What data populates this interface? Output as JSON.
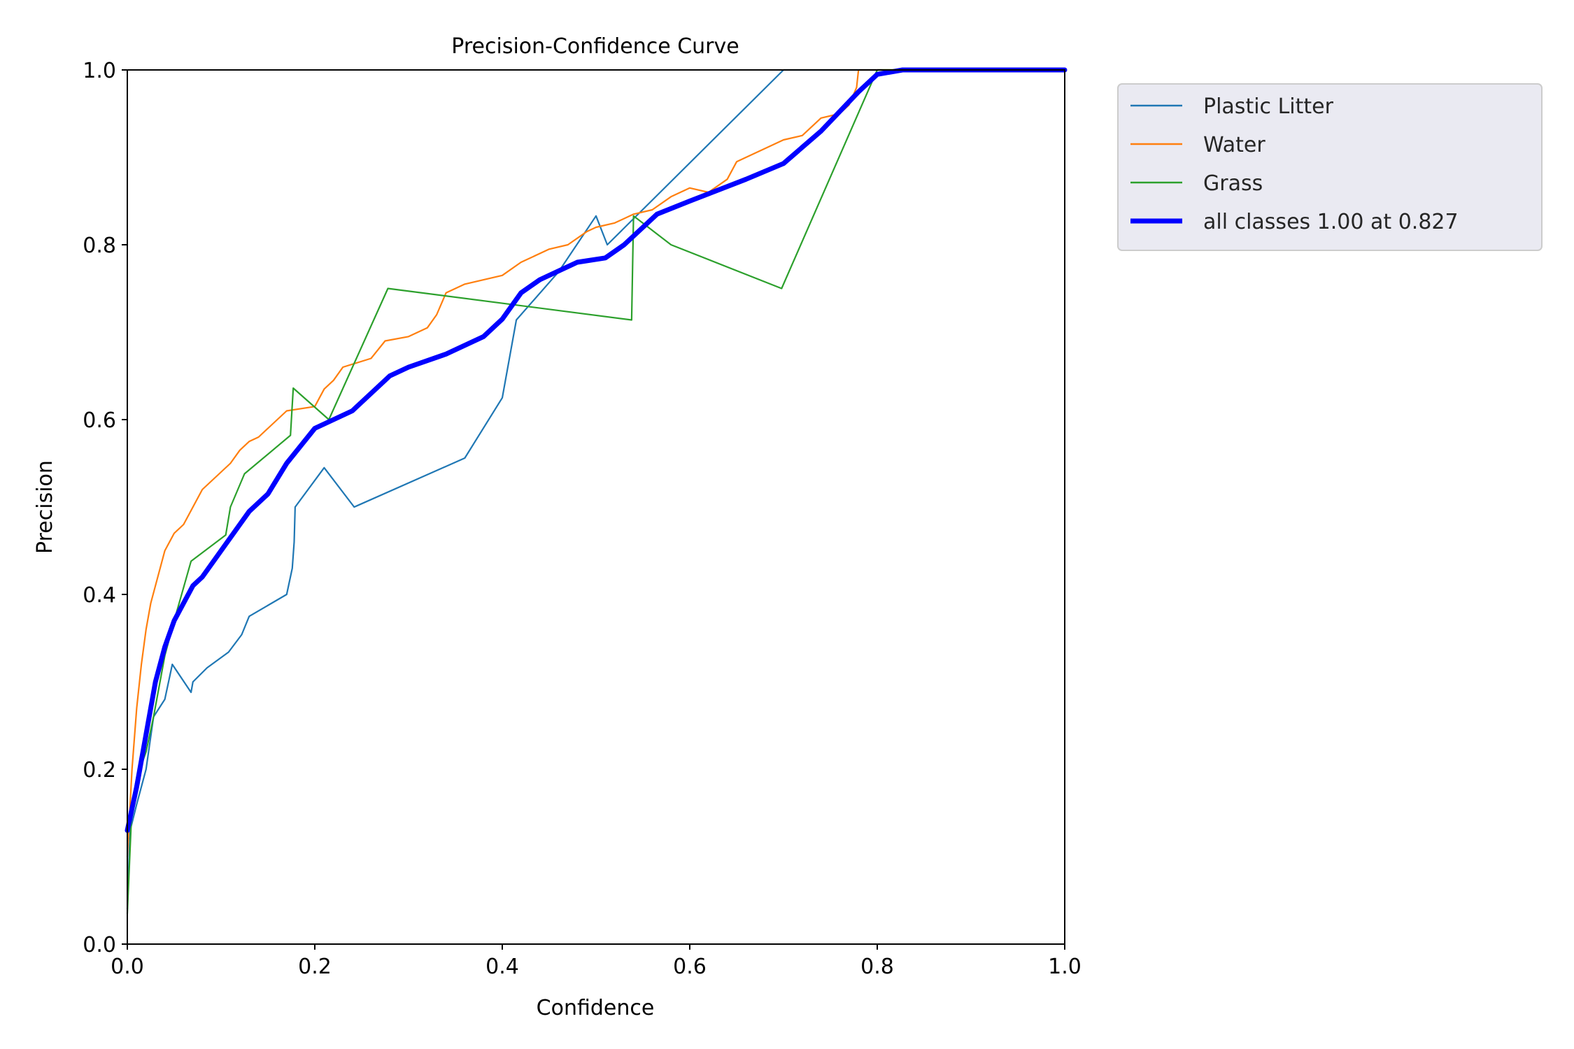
{
  "chart_data": {
    "type": "line",
    "title": "Precision-Confidence Curve",
    "xlabel": "Confidence",
    "ylabel": "Precision",
    "xlim": [
      0,
      1
    ],
    "ylim": [
      0,
      1
    ],
    "xticks": [
      "0.0",
      "0.2",
      "0.4",
      "0.6",
      "0.8",
      "1.0"
    ],
    "yticks": [
      "0.0",
      "0.2",
      "0.4",
      "0.6",
      "0.8",
      "1.0"
    ],
    "grid": false,
    "legend_position": "outside-top-right",
    "series": [
      {
        "name": "Plastic Litter",
        "color": "#1f77b4",
        "thick": false,
        "points": [
          [
            0.0,
            0.04
          ],
          [
            0.003,
            0.13
          ],
          [
            0.01,
            0.16
          ],
          [
            0.02,
            0.2
          ],
          [
            0.028,
            0.26
          ],
          [
            0.04,
            0.28
          ],
          [
            0.048,
            0.32
          ],
          [
            0.068,
            0.288
          ],
          [
            0.07,
            0.3
          ],
          [
            0.085,
            0.316
          ],
          [
            0.108,
            0.334
          ],
          [
            0.122,
            0.354
          ],
          [
            0.13,
            0.375
          ],
          [
            0.17,
            0.4
          ],
          [
            0.176,
            0.43
          ],
          [
            0.178,
            0.46
          ],
          [
            0.179,
            0.5
          ],
          [
            0.21,
            0.545
          ],
          [
            0.242,
            0.5
          ],
          [
            0.36,
            0.556
          ],
          [
            0.4,
            0.625
          ],
          [
            0.415,
            0.714
          ],
          [
            0.46,
            0.769
          ],
          [
            0.5,
            0.833
          ],
          [
            0.512,
            0.8
          ],
          [
            0.7,
            1.0
          ],
          [
            1.0,
            1.0
          ]
        ]
      },
      {
        "name": "Water",
        "color": "#ff7f0e",
        "thick": false,
        "points": [
          [
            0.0,
            0.1
          ],
          [
            0.005,
            0.2
          ],
          [
            0.01,
            0.27
          ],
          [
            0.015,
            0.32
          ],
          [
            0.02,
            0.36
          ],
          [
            0.025,
            0.39
          ],
          [
            0.03,
            0.41
          ],
          [
            0.035,
            0.43
          ],
          [
            0.04,
            0.45
          ],
          [
            0.05,
            0.47
          ],
          [
            0.06,
            0.48
          ],
          [
            0.07,
            0.5
          ],
          [
            0.08,
            0.52
          ],
          [
            0.09,
            0.53
          ],
          [
            0.1,
            0.54
          ],
          [
            0.11,
            0.55
          ],
          [
            0.12,
            0.565
          ],
          [
            0.13,
            0.575
          ],
          [
            0.14,
            0.58
          ],
          [
            0.15,
            0.59
          ],
          [
            0.16,
            0.6
          ],
          [
            0.17,
            0.61
          ],
          [
            0.2,
            0.615
          ],
          [
            0.21,
            0.635
          ],
          [
            0.22,
            0.645
          ],
          [
            0.23,
            0.66
          ],
          [
            0.26,
            0.67
          ],
          [
            0.275,
            0.69
          ],
          [
            0.3,
            0.695
          ],
          [
            0.32,
            0.705
          ],
          [
            0.33,
            0.72
          ],
          [
            0.34,
            0.745
          ],
          [
            0.36,
            0.755
          ],
          [
            0.4,
            0.765
          ],
          [
            0.42,
            0.78
          ],
          [
            0.45,
            0.795
          ],
          [
            0.47,
            0.8
          ],
          [
            0.49,
            0.815
          ],
          [
            0.5,
            0.82
          ],
          [
            0.52,
            0.825
          ],
          [
            0.54,
            0.835
          ],
          [
            0.56,
            0.84
          ],
          [
            0.58,
            0.855
          ],
          [
            0.6,
            0.865
          ],
          [
            0.62,
            0.86
          ],
          [
            0.64,
            0.875
          ],
          [
            0.65,
            0.895
          ],
          [
            0.66,
            0.9
          ],
          [
            0.68,
            0.91
          ],
          [
            0.7,
            0.92
          ],
          [
            0.72,
            0.925
          ],
          [
            0.74,
            0.945
          ],
          [
            0.76,
            0.95
          ],
          [
            0.77,
            0.96
          ],
          [
            0.778,
            0.98
          ],
          [
            0.78,
            1.0
          ],
          [
            1.0,
            1.0
          ]
        ]
      },
      {
        "name": "Grass",
        "color": "#2ca02c",
        "thick": false,
        "points": [
          [
            0.0,
            0.035
          ],
          [
            0.005,
            0.16
          ],
          [
            0.01,
            0.19
          ],
          [
            0.02,
            0.22
          ],
          [
            0.028,
            0.26
          ],
          [
            0.04,
            0.33
          ],
          [
            0.05,
            0.37
          ],
          [
            0.068,
            0.438
          ],
          [
            0.105,
            0.468
          ],
          [
            0.11,
            0.5
          ],
          [
            0.125,
            0.538
          ],
          [
            0.174,
            0.582
          ],
          [
            0.177,
            0.636
          ],
          [
            0.215,
            0.6
          ],
          [
            0.278,
            0.75
          ],
          [
            0.538,
            0.714
          ],
          [
            0.54,
            0.833
          ],
          [
            0.58,
            0.8
          ],
          [
            0.698,
            0.75
          ],
          [
            0.8,
            1.0
          ],
          [
            1.0,
            1.0
          ]
        ]
      },
      {
        "name": "all classes 1.00 at 0.827",
        "color": "#0000ff",
        "thick": true,
        "points": [
          [
            0.0,
            0.13
          ],
          [
            0.01,
            0.18
          ],
          [
            0.02,
            0.24
          ],
          [
            0.03,
            0.3
          ],
          [
            0.04,
            0.34
          ],
          [
            0.05,
            0.37
          ],
          [
            0.06,
            0.39
          ],
          [
            0.07,
            0.41
          ],
          [
            0.08,
            0.42
          ],
          [
            0.1,
            0.45
          ],
          [
            0.12,
            0.48
          ],
          [
            0.13,
            0.495
          ],
          [
            0.15,
            0.515
          ],
          [
            0.17,
            0.55
          ],
          [
            0.2,
            0.59
          ],
          [
            0.22,
            0.6
          ],
          [
            0.24,
            0.61
          ],
          [
            0.26,
            0.63
          ],
          [
            0.28,
            0.65
          ],
          [
            0.3,
            0.66
          ],
          [
            0.34,
            0.675
          ],
          [
            0.38,
            0.695
          ],
          [
            0.4,
            0.715
          ],
          [
            0.42,
            0.745
          ],
          [
            0.44,
            0.76
          ],
          [
            0.48,
            0.78
          ],
          [
            0.51,
            0.785
          ],
          [
            0.53,
            0.8
          ],
          [
            0.565,
            0.835
          ],
          [
            0.6,
            0.85
          ],
          [
            0.66,
            0.875
          ],
          [
            0.7,
            0.893
          ],
          [
            0.74,
            0.93
          ],
          [
            0.78,
            0.975
          ],
          [
            0.8,
            0.995
          ],
          [
            0.827,
            1.0
          ],
          [
            1.0,
            1.0
          ]
        ]
      }
    ]
  }
}
